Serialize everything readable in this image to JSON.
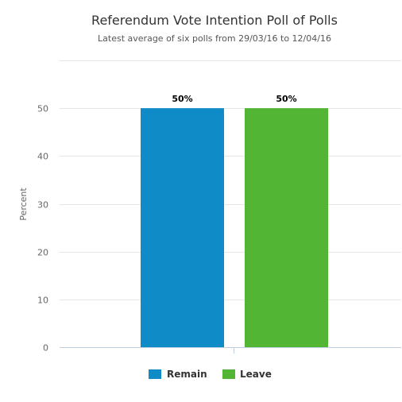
{
  "chart_data": {
    "type": "bar",
    "title": "Referendum Vote Intention Poll of Polls",
    "subtitle": "Latest average of six polls from 29/03/16 to 12/04/16",
    "xlabel": "",
    "ylabel": "Percent",
    "categories": [
      "Remain",
      "Leave"
    ],
    "values": [
      50,
      50
    ],
    "data_labels": [
      "50%",
      "50%"
    ],
    "colors": [
      "#0f8cc7",
      "#52b534"
    ],
    "ylim": [
      0,
      50
    ],
    "yticks": [
      0,
      10,
      20,
      30,
      40,
      50
    ],
    "grid": true,
    "legend": {
      "position": "bottom-center",
      "items": [
        {
          "label": "Remain",
          "color": "#0f8cc7"
        },
        {
          "label": "Leave",
          "color": "#52b534"
        }
      ]
    }
  }
}
